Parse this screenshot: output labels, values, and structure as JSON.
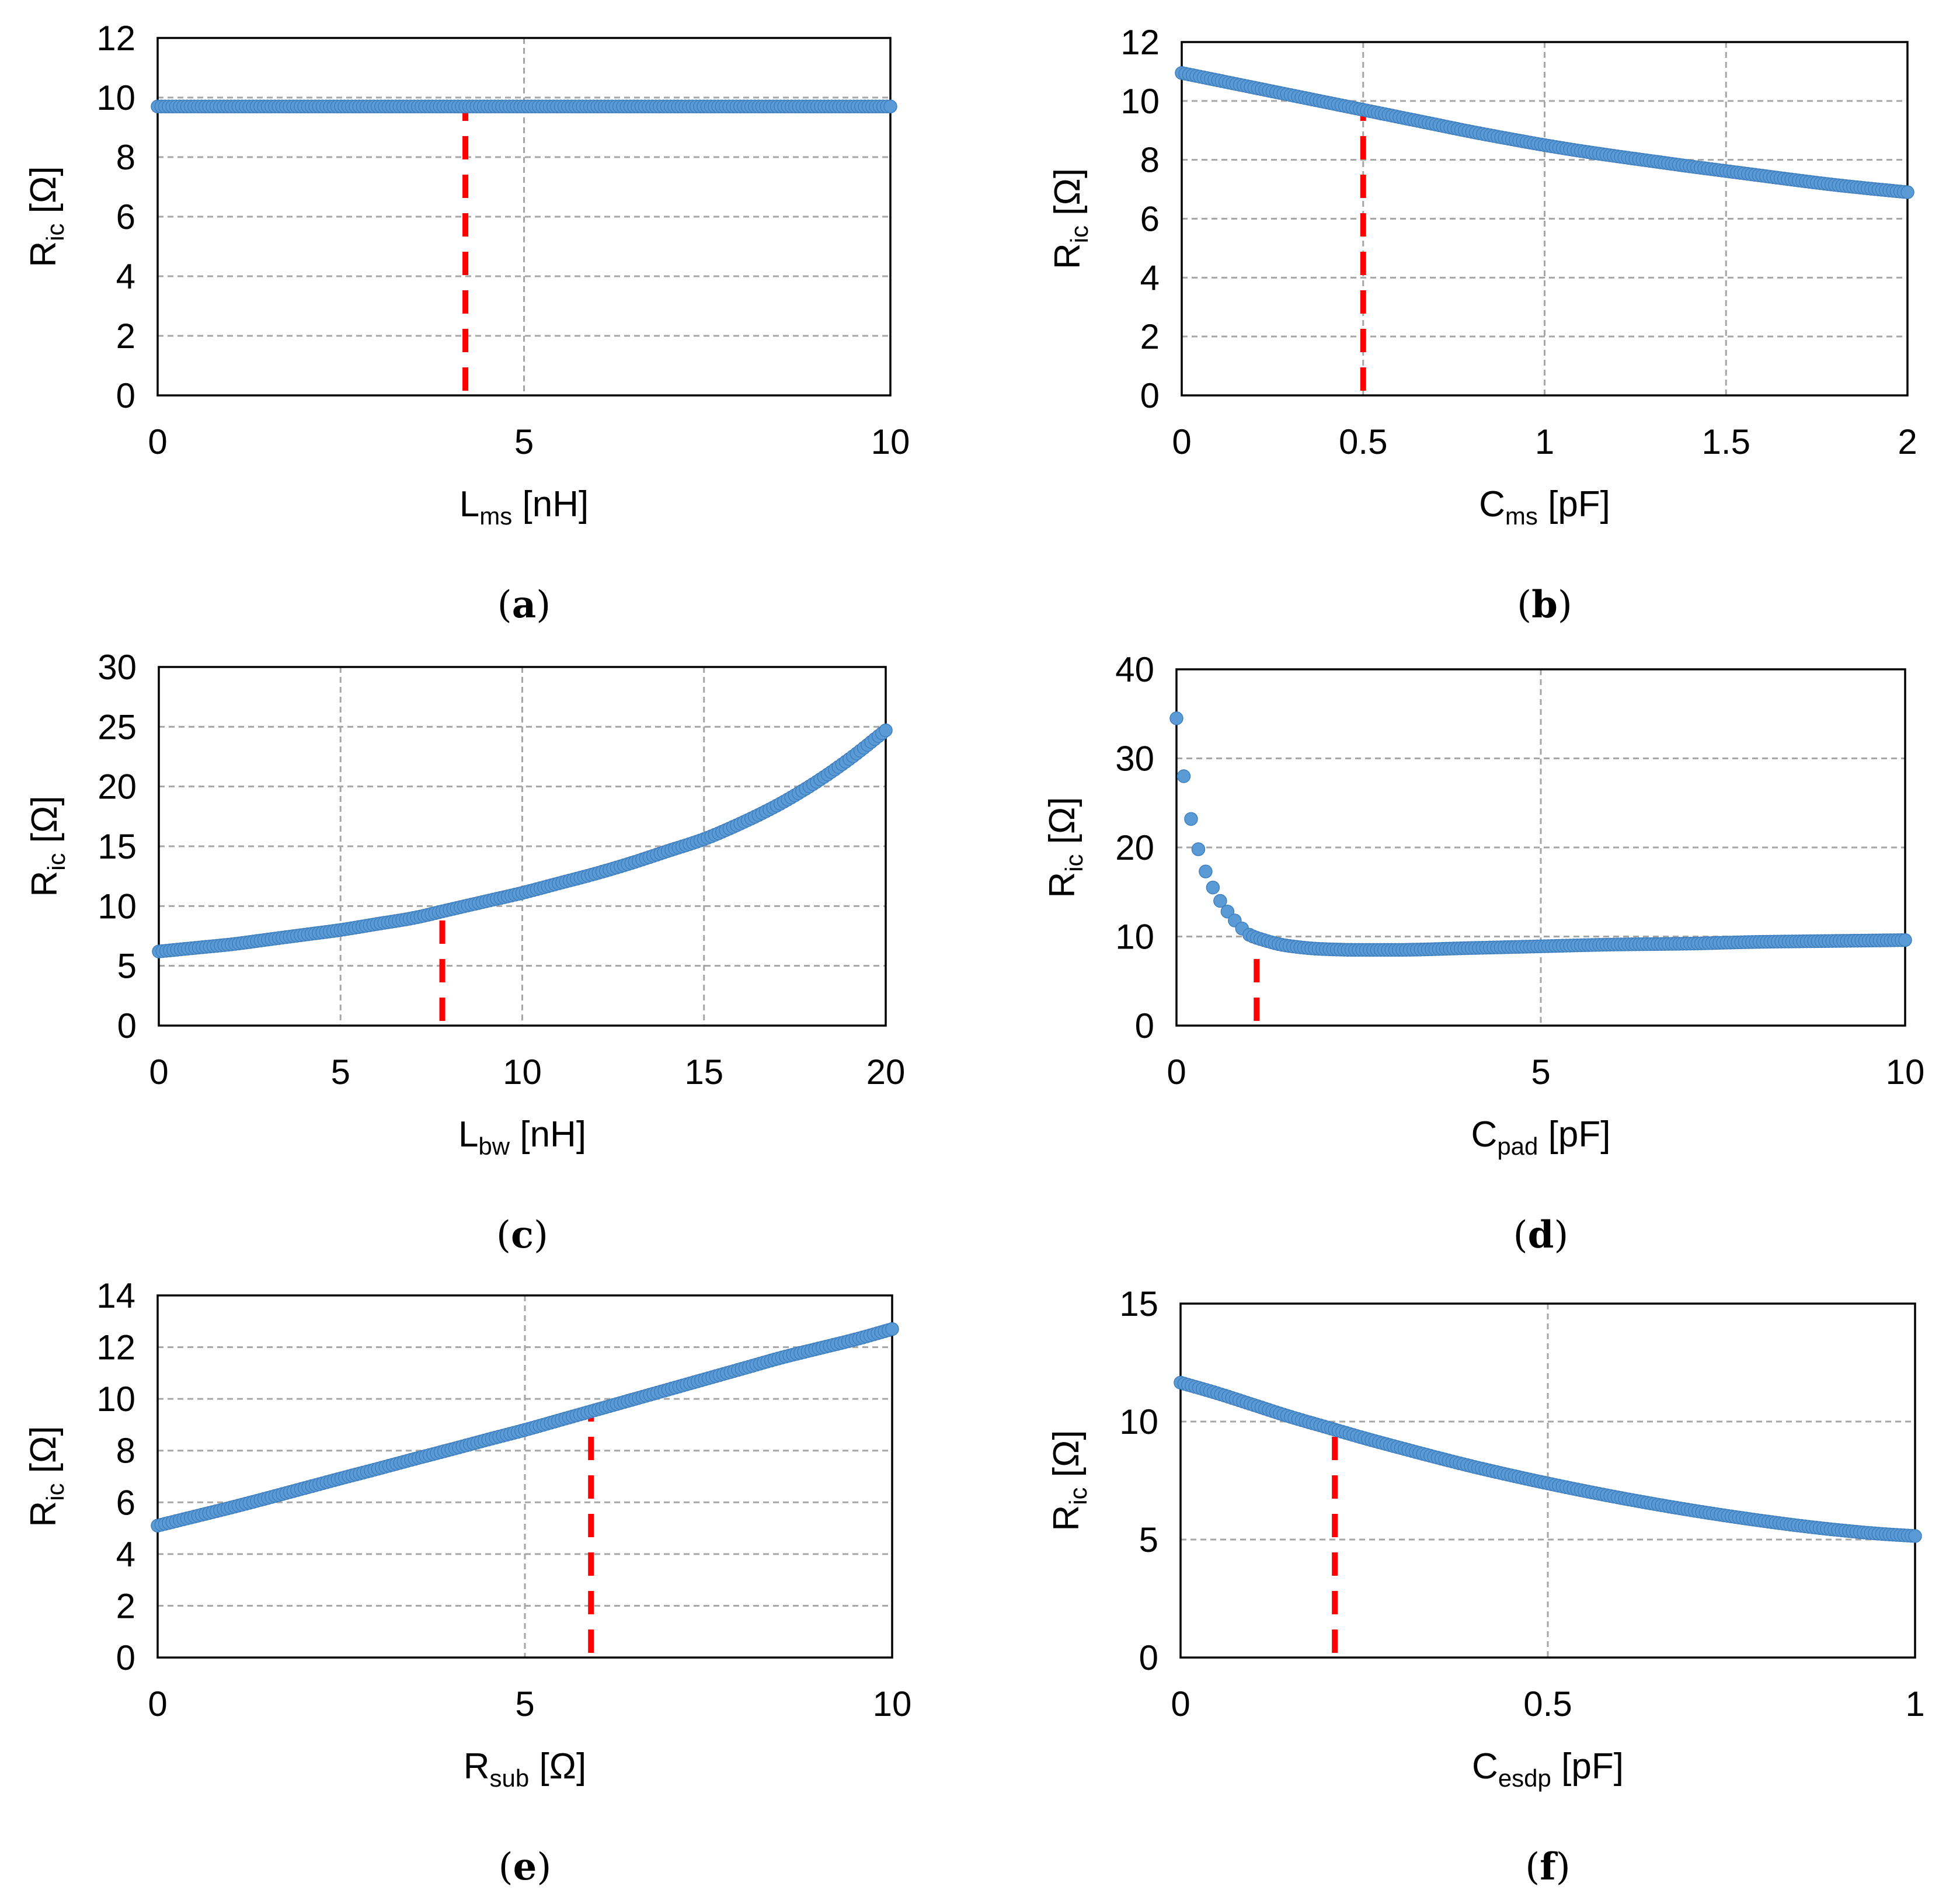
{
  "style": {
    "marker_color": "#5B9BD5",
    "marker_line_color": "#3F7FBF",
    "marker_color_light": "#8DB8E4",
    "marker_color_dark": "#3F7FBF",
    "reference_color": "#FF0000",
    "grid_color": "#A6A6A6",
    "axis_color": "#000000"
  },
  "chart_data": [
    {
      "id": "a",
      "type": "scatter",
      "caption": "a",
      "ylabel": {
        "main": "R",
        "sub": "ic",
        "unit": " [Ω]"
      },
      "xlabel": {
        "main": "L",
        "sub": "ms",
        "unit": " [nH]"
      },
      "xlim": [
        0,
        10
      ],
      "ylim": [
        0,
        12
      ],
      "xticks": [
        0,
        5,
        10
      ],
      "xtick_labels": [
        "0",
        "5",
        "10"
      ],
      "yticks": [
        0,
        2,
        4,
        6,
        8,
        10,
        12
      ],
      "ytick_labels": [
        "0",
        "2",
        "4",
        "6",
        "8",
        "10",
        "12"
      ],
      "grid": true,
      "reference_x": 4.2,
      "series": [
        {
          "x": [
            0,
            0.5,
            1,
            1.5,
            2,
            2.5,
            3,
            3.5,
            4,
            4.5,
            5,
            5.5,
            6,
            6.5,
            7,
            7.5,
            8,
            8.5,
            9,
            9.5,
            10
          ],
          "y": [
            9.7,
            9.7,
            9.7,
            9.7,
            9.7,
            9.7,
            9.7,
            9.7,
            9.7,
            9.7,
            9.7,
            9.7,
            9.7,
            9.7,
            9.7,
            9.7,
            9.7,
            9.7,
            9.7,
            9.7,
            9.7
          ]
        }
      ]
    },
    {
      "id": "b",
      "type": "scatter",
      "caption": "b",
      "ylabel": {
        "main": "R",
        "sub": "ic",
        "unit": " [Ω]"
      },
      "xlabel": {
        "main": "C",
        "sub": "ms",
        "unit": " [pF]"
      },
      "xlim": [
        0,
        2
      ],
      "ylim": [
        0,
        12
      ],
      "xticks": [
        0,
        0.5,
        1,
        1.5,
        2
      ],
      "xtick_labels": [
        "0",
        "0.5",
        "1",
        "1.5",
        "2"
      ],
      "yticks": [
        0,
        2,
        4,
        6,
        8,
        10,
        12
      ],
      "ytick_labels": [
        "0",
        "2",
        "4",
        "6",
        "8",
        "10",
        "12"
      ],
      "grid": true,
      "reference_x": 0.5,
      "series": [
        {
          "x": [
            0,
            0.1,
            0.2,
            0.3,
            0.4,
            0.5,
            0.6,
            0.7,
            0.8,
            0.9,
            1.0,
            1.1,
            1.2,
            1.3,
            1.4,
            1.5,
            1.6,
            1.7,
            1.8,
            1.9,
            2.0
          ],
          "y": [
            10.95,
            10.7,
            10.45,
            10.2,
            9.95,
            9.7,
            9.45,
            9.2,
            8.95,
            8.72,
            8.5,
            8.3,
            8.12,
            7.95,
            7.78,
            7.62,
            7.46,
            7.3,
            7.15,
            7.02,
            6.9
          ]
        }
      ]
    },
    {
      "id": "c",
      "type": "scatter",
      "caption": "c",
      "ylabel": {
        "main": "R",
        "sub": "ic",
        "unit": " [Ω]"
      },
      "xlabel": {
        "main": "L",
        "sub": "bw",
        "unit": " [nH]"
      },
      "xlim": [
        0,
        20
      ],
      "ylim": [
        0,
        30
      ],
      "xticks": [
        0,
        5,
        10,
        15,
        20
      ],
      "xtick_labels": [
        "0",
        "5",
        "10",
        "15",
        "20"
      ],
      "yticks": [
        0,
        5,
        10,
        15,
        20,
        25,
        30
      ],
      "ytick_labels": [
        "0",
        "5",
        "10",
        "15",
        "20",
        "25",
        "30"
      ],
      "grid": true,
      "reference_x": 7.8,
      "series": [
        {
          "x": [
            0,
            1,
            2,
            3,
            4,
            5,
            6,
            7,
            8,
            9,
            10,
            11,
            12,
            13,
            14,
            15,
            16,
            17,
            18,
            19,
            20
          ],
          "y": [
            6.2,
            6.5,
            6.8,
            7.2,
            7.6,
            8.0,
            8.5,
            9.0,
            9.7,
            10.4,
            11.1,
            11.9,
            12.7,
            13.6,
            14.6,
            15.6,
            16.9,
            18.4,
            20.2,
            22.3,
            24.7
          ]
        }
      ]
    },
    {
      "id": "d",
      "type": "scatter",
      "caption": "d",
      "ylabel": {
        "main": "R",
        "sub": "ic",
        "unit": " [Ω]"
      },
      "xlabel": {
        "main": "C",
        "sub": "pad",
        "unit": " [pF]"
      },
      "xlim": [
        0,
        10
      ],
      "ylim": [
        0,
        40
      ],
      "xticks": [
        0,
        5,
        10
      ],
      "xtick_labels": [
        "0",
        "5",
        "10"
      ],
      "yticks": [
        0,
        10,
        20,
        30,
        40
      ],
      "ytick_labels": [
        "0",
        "10",
        "20",
        "30",
        "40"
      ],
      "grid": true,
      "reference_x": 1.1,
      "series": [
        {
          "x": [
            0,
            0.1,
            0.2,
            0.3,
            0.4,
            0.5,
            0.6,
            0.7,
            0.8,
            0.9,
            1.0,
            1.2,
            1.5,
            2.0,
            2.5,
            3.0,
            4.0,
            5.0,
            6.0,
            7.0,
            8.0,
            9.0,
            10.0
          ],
          "y": [
            34.5,
            28.0,
            23.2,
            19.8,
            17.3,
            15.5,
            14.0,
            12.8,
            11.8,
            10.9,
            10.2,
            9.6,
            9.0,
            8.6,
            8.5,
            8.5,
            8.7,
            8.9,
            9.1,
            9.2,
            9.4,
            9.5,
            9.6
          ]
        }
      ]
    },
    {
      "id": "e",
      "type": "scatter",
      "caption": "e",
      "ylabel": {
        "main": "R",
        "sub": "ic",
        "unit": " [Ω]"
      },
      "xlabel": {
        "main": "R",
        "sub": "sub",
        "unit": " [Ω]"
      },
      "xlim": [
        0,
        10
      ],
      "ylim": [
        0,
        14
      ],
      "xticks": [
        0,
        5,
        10
      ],
      "xtick_labels": [
        "0",
        "5",
        "10"
      ],
      "yticks": [
        0,
        2,
        4,
        6,
        8,
        10,
        12,
        14
      ],
      "ytick_labels": [
        "0",
        "2",
        "4",
        "6",
        "8",
        "10",
        "12",
        "14"
      ],
      "grid": true,
      "reference_x": 5.9,
      "series": [
        {
          "x": [
            0,
            0.5,
            1,
            1.5,
            2,
            2.5,
            3,
            3.5,
            4,
            4.5,
            5,
            5.5,
            6,
            6.5,
            7,
            7.5,
            8,
            8.5,
            9,
            9.5,
            10
          ],
          "y": [
            5.1,
            5.45,
            5.8,
            6.17,
            6.55,
            6.93,
            7.3,
            7.68,
            8.05,
            8.43,
            8.8,
            9.2,
            9.6,
            10.0,
            10.4,
            10.8,
            11.2,
            11.6,
            11.95,
            12.3,
            12.7
          ]
        }
      ]
    },
    {
      "id": "f",
      "type": "scatter",
      "caption": "f",
      "ylabel": {
        "main": "R",
        "sub": "ic",
        "unit": " [Ω]"
      },
      "xlabel": {
        "main": "C",
        "sub": "esdp",
        "unit": " [pF]"
      },
      "xlim": [
        0,
        1
      ],
      "ylim": [
        0,
        15
      ],
      "xticks": [
        0,
        0.5,
        1
      ],
      "xtick_labels": [
        "0",
        "0.5",
        "1"
      ],
      "yticks": [
        0,
        5,
        10,
        15
      ],
      "ytick_labels": [
        "0",
        "5",
        "10",
        "15"
      ],
      "grid": true,
      "reference_x": 0.21,
      "series": [
        {
          "x": [
            0,
            0.05,
            0.1,
            0.15,
            0.2,
            0.25,
            0.3,
            0.35,
            0.4,
            0.45,
            0.5,
            0.55,
            0.6,
            0.65,
            0.7,
            0.75,
            0.8,
            0.85,
            0.9,
            0.95,
            1.0
          ],
          "y": [
            11.65,
            11.2,
            10.7,
            10.2,
            9.75,
            9.3,
            8.88,
            8.47,
            8.08,
            7.72,
            7.38,
            7.06,
            6.76,
            6.48,
            6.22,
            5.98,
            5.76,
            5.56,
            5.39,
            5.25,
            5.15
          ]
        }
      ]
    }
  ]
}
